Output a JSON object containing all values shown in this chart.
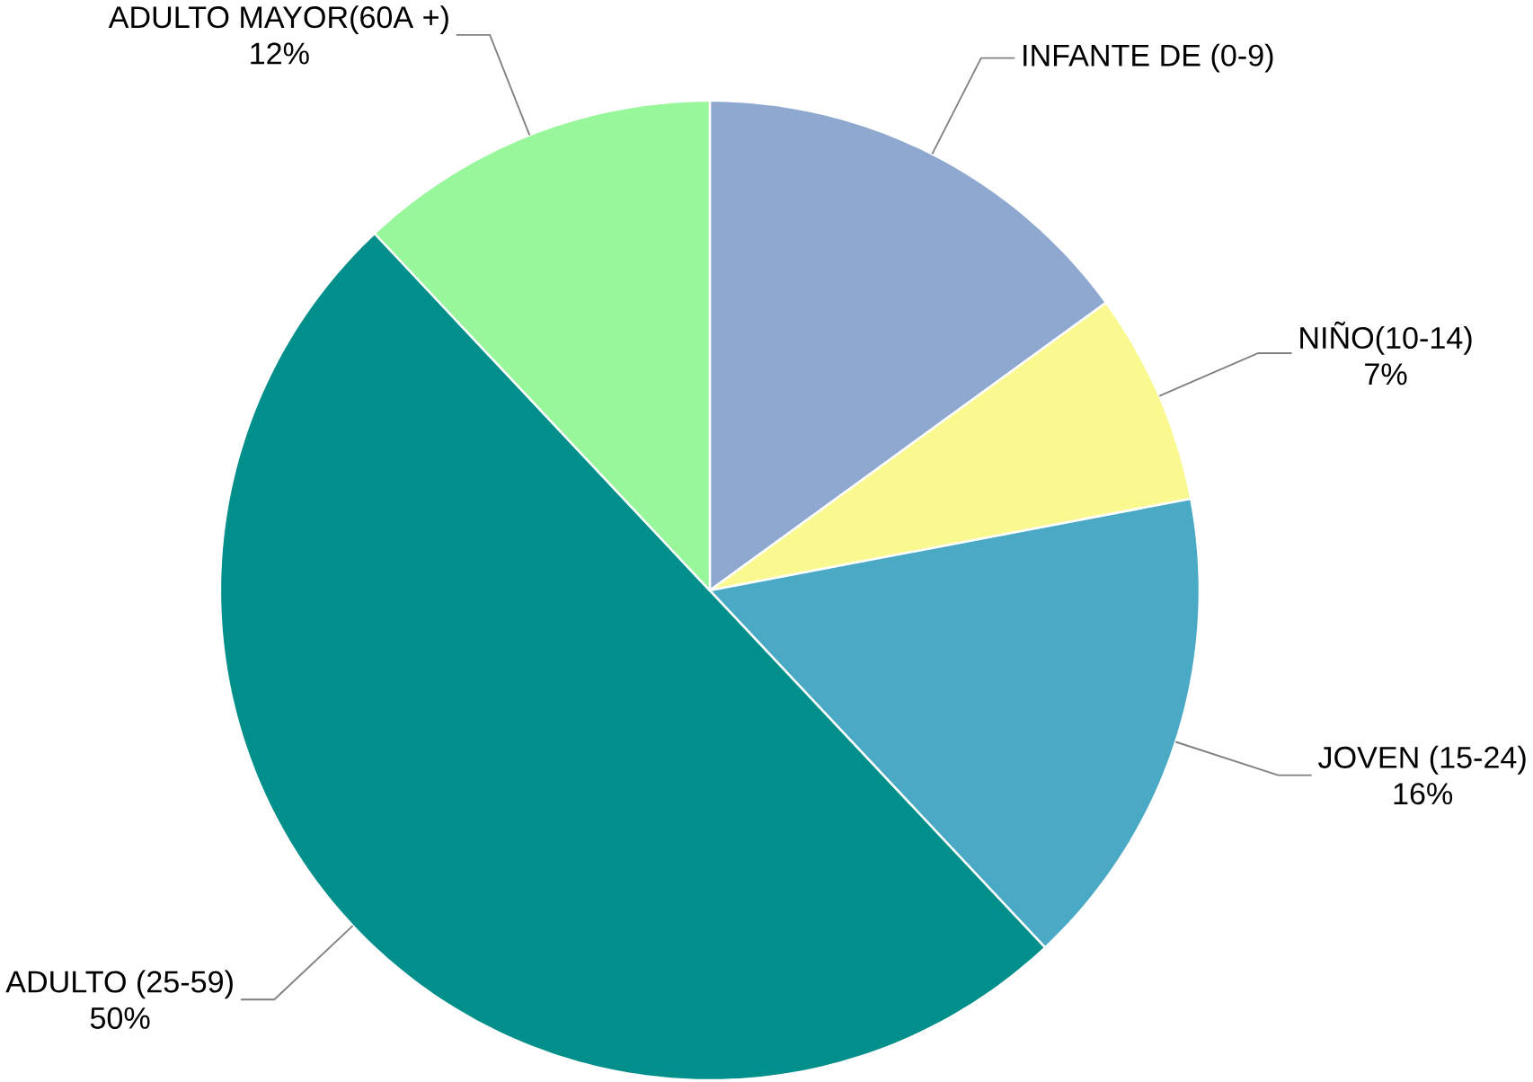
{
  "chart_data": {
    "type": "pie",
    "categories": [
      "INFANTE DE (0-9)",
      "NIÑO(10-14)",
      "JOVEN (15-24)",
      "ADULTO (25-59)",
      "ADULTO MAYOR(60A +)"
    ],
    "values": [
      15,
      7,
      16,
      50,
      12
    ],
    "value_labels": [
      null,
      "7%",
      "16%",
      "50%",
      "12%"
    ],
    "colors": [
      "#8fa8d0",
      "#f9f990",
      "#4aa9c4",
      "#008f8a",
      "#98f79a"
    ]
  }
}
